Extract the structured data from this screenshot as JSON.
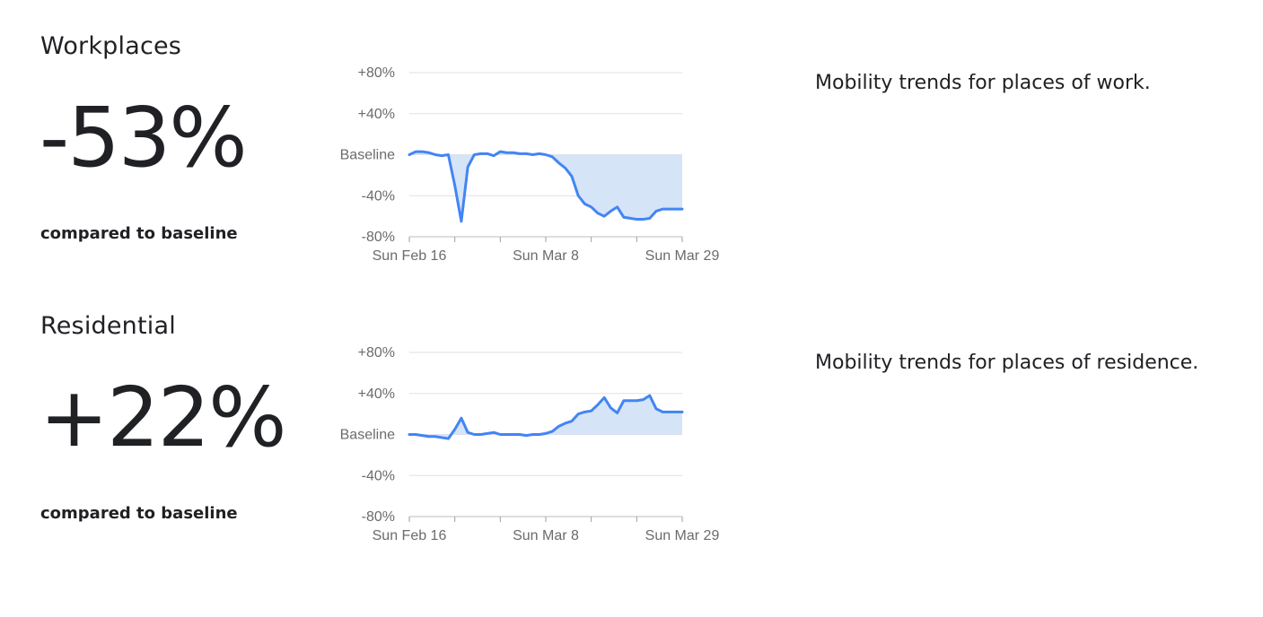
{
  "sections": [
    {
      "title": "Workplaces",
      "value": "-53%",
      "comparison": "compared to baseline",
      "description": "Mobility trends for places of work."
    },
    {
      "title": "Residential",
      "value": "+22%",
      "comparison": "compared to baseline",
      "description": "Mobility trends for places of residence."
    }
  ],
  "colors": {
    "line": "#4285f4",
    "fill": "#d6e4f8",
    "grid": "#e0e0e0",
    "text": "#202124",
    "tick_text": "#6b6b6b"
  },
  "chart_data": [
    {
      "type": "area",
      "x_ticks": [
        "Sun Feb 16",
        "Sun Mar 8",
        "Sun Mar 29"
      ],
      "y_ticks": [
        "+80%",
        "+40%",
        "Baseline",
        "-40%",
        "-80%"
      ],
      "ylim": [
        -80,
        80
      ],
      "x_range": [
        "2020-02-16",
        "2020-03-29"
      ],
      "grid": true,
      "series": [
        {
          "x": [
            "2020-02-16",
            "2020-02-17",
            "2020-02-18",
            "2020-02-19",
            "2020-02-20",
            "2020-02-21",
            "2020-02-22",
            "2020-02-23",
            "2020-02-24",
            "2020-02-25",
            "2020-02-26",
            "2020-02-27",
            "2020-02-28",
            "2020-02-29",
            "2020-03-01",
            "2020-03-02",
            "2020-03-03",
            "2020-03-04",
            "2020-03-05",
            "2020-03-06",
            "2020-03-07",
            "2020-03-08",
            "2020-03-09",
            "2020-03-10",
            "2020-03-11",
            "2020-03-12",
            "2020-03-13",
            "2020-03-14",
            "2020-03-15",
            "2020-03-16",
            "2020-03-17",
            "2020-03-18",
            "2020-03-19",
            "2020-03-20",
            "2020-03-21",
            "2020-03-22",
            "2020-03-23",
            "2020-03-24",
            "2020-03-25",
            "2020-03-26",
            "2020-03-27",
            "2020-03-28",
            "2020-03-29"
          ],
          "values": [
            0,
            3,
            3,
            2,
            0,
            -1,
            0,
            -30,
            -65,
            -12,
            0,
            1,
            1,
            -1,
            3,
            2,
            2,
            1,
            1,
            0,
            1,
            0,
            -2,
            -8,
            -13,
            -21,
            -40,
            -48,
            -51,
            -57,
            -60,
            -55,
            -51,
            -61,
            -62,
            -63,
            -63,
            -62,
            -55,
            -53,
            -53,
            -53,
            -53
          ]
        }
      ]
    },
    {
      "type": "area",
      "x_ticks": [
        "Sun Feb 16",
        "Sun Mar 8",
        "Sun Mar 29"
      ],
      "y_ticks": [
        "+80%",
        "+40%",
        "Baseline",
        "-40%",
        "-80%"
      ],
      "ylim": [
        -80,
        80
      ],
      "x_range": [
        "2020-02-16",
        "2020-03-29"
      ],
      "grid": true,
      "series": [
        {
          "x": [
            "2020-02-16",
            "2020-02-17",
            "2020-02-18",
            "2020-02-19",
            "2020-02-20",
            "2020-02-21",
            "2020-02-22",
            "2020-02-23",
            "2020-02-24",
            "2020-02-25",
            "2020-02-26",
            "2020-02-27",
            "2020-02-28",
            "2020-02-29",
            "2020-03-01",
            "2020-03-02",
            "2020-03-03",
            "2020-03-04",
            "2020-03-05",
            "2020-03-06",
            "2020-03-07",
            "2020-03-08",
            "2020-03-09",
            "2020-03-10",
            "2020-03-11",
            "2020-03-12",
            "2020-03-13",
            "2020-03-14",
            "2020-03-15",
            "2020-03-16",
            "2020-03-17",
            "2020-03-18",
            "2020-03-19",
            "2020-03-20",
            "2020-03-21",
            "2020-03-22",
            "2020-03-23",
            "2020-03-24",
            "2020-03-25",
            "2020-03-26",
            "2020-03-27",
            "2020-03-28",
            "2020-03-29"
          ],
          "values": [
            0,
            0,
            -1,
            -2,
            -2,
            -3,
            -4,
            5,
            16,
            2,
            0,
            0,
            1,
            2,
            0,
            0,
            0,
            0,
            -1,
            0,
            0,
            1,
            3,
            8,
            11,
            13,
            20,
            22,
            23,
            29,
            36,
            26,
            21,
            33,
            33,
            33,
            34,
            38,
            25,
            22,
            22,
            22,
            22
          ]
        }
      ]
    }
  ]
}
